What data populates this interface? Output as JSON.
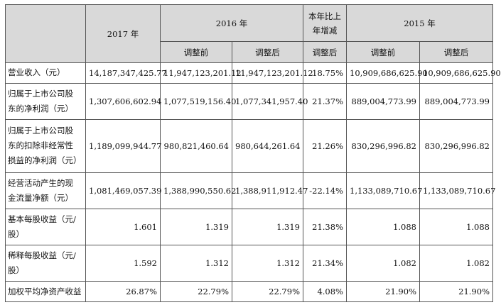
{
  "header": {
    "y2017": "2017 年",
    "y2016": "2016 年",
    "yoy": [
      "本年比上",
      "年增减"
    ],
    "y2015": "2015 年",
    "before": "调整前",
    "after": "调整后",
    "yoy_after": "调整后"
  },
  "rows": [
    {
      "label": [
        "营业收入（元）"
      ],
      "v2017": "14,187,347,425.77",
      "v2016_before": "11,947,123,201.12",
      "v2016_after": "11,947,123,201.12",
      "yoy": "18.75%",
      "v2015_before": "10,909,686,625.90",
      "v2015_after": "10,909,686,625.90"
    },
    {
      "label": [
        "归属于上市公司股",
        "东的净利润（元）"
      ],
      "v2017": "1,307,606,602.94",
      "v2016_before": "1,077,519,156.40",
      "v2016_after": "1,077,341,957.40",
      "yoy": "21.37%",
      "v2015_before": "889,004,773.99",
      "v2015_after": "889,004,773.99"
    },
    {
      "label": [
        "归属于上市公司股",
        "东的扣除非经常性",
        "损益的净利润（元）"
      ],
      "v2017": "1,189,099,944.77",
      "v2016_before": "980,821,460.64",
      "v2016_after": "980,644,261.64",
      "yoy": "21.26%",
      "v2015_before": "830,296,996.82",
      "v2015_after": "830,296,996.82"
    },
    {
      "label": [
        "经营活动产生的现",
        "金流量净额（元）"
      ],
      "v2017": "1,081,469,057.39",
      "v2016_before": "1,388,990,550.62",
      "v2016_after": "1,388,911,912.47",
      "yoy": "-22.14%",
      "v2015_before": "1,133,089,710.67",
      "v2015_after": "1,133,089,710.67"
    },
    {
      "label": [
        "基本每股收益（元/",
        "股）"
      ],
      "v2017": "1.601",
      "v2016_before": "1.319",
      "v2016_after": "1.319",
      "yoy": "21.38%",
      "v2015_before": "1.088",
      "v2015_after": "1.088"
    },
    {
      "label": [
        "稀释每股收益（元/",
        "股）"
      ],
      "v2017": "1.592",
      "v2016_before": "1.312",
      "v2016_after": "1.312",
      "yoy": "21.34%",
      "v2015_before": "1.082",
      "v2015_after": "1.082"
    },
    {
      "label": [
        "加权平均净资产收益"
      ],
      "v2017": "26.87%",
      "v2016_before": "22.79%",
      "v2016_after": "22.79%",
      "yoy": "4.08%",
      "v2015_before": "21.90%",
      "v2015_after": "21.90%"
    }
  ]
}
